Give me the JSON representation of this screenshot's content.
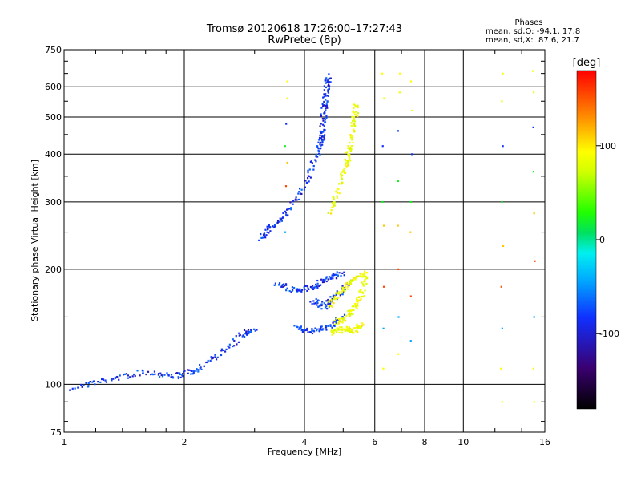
{
  "chart_data": {
    "type": "scatter",
    "title": "Tromsø 20120618 17:26:00–17:27:43",
    "subtitle": "RwPretec (8p)",
    "xlabel": "Frequency [MHz]",
    "ylabel": "Stationary phase Virtual Height [km]",
    "x_scale": "log",
    "y_scale": "log",
    "xlim": [
      1,
      16
    ],
    "ylim": [
      75,
      750
    ],
    "x_ticks": [
      1,
      2,
      4,
      6,
      8,
      10,
      16
    ],
    "x_tick_labels": [
      "1",
      "2",
      "4",
      "6",
      "8",
      "10",
      "16"
    ],
    "y_ticks": [
      75,
      100,
      200,
      300,
      400,
      500,
      600,
      750
    ],
    "y_tick_labels": [
      "75",
      "100",
      "200",
      "300",
      "400",
      "500",
      "600",
      "750"
    ],
    "x_minor_ticks": [
      1.2,
      1.4,
      1.6,
      1.8,
      3,
      5,
      7,
      9,
      12,
      14
    ],
    "y_minor_ticks": [
      80,
      90,
      150,
      250,
      350,
      450,
      550,
      650,
      700
    ],
    "grid": true,
    "phases_panel": {
      "title": "Phases",
      "line1": "mean, sd,O: -94.1, 17.8",
      "line2": "mean, sd,X:  87.6, 21.7"
    },
    "colorbar": {
      "label": "[deg]",
      "range": [
        -180,
        180
      ],
      "ticks": [
        100,
        0,
        -100
      ],
      "tick_labels": [
        "100",
        "0",
        "-100"
      ]
    },
    "series": [
      {
        "name": "O",
        "color_phase": -100,
        "traces": [
          {
            "x": [
              1.05,
              1.3,
              1.6,
              1.9,
              2.1,
              2.4,
              2.8,
              3.0
            ],
            "y": [
              98,
              103,
              108,
              105,
              108,
              118,
              135,
              140
            ]
          },
          {
            "x": [
              3.1,
              3.3,
              3.6,
              4.0,
              4.3,
              4.5
            ],
            "y": [
              240,
              258,
              280,
              330,
              400,
              460
            ]
          },
          {
            "x": [
              4.4,
              4.45,
              4.5,
              4.55,
              4.6
            ],
            "y": [
              420,
              480,
              540,
              600,
              640
            ]
          },
          {
            "x": [
              3.4,
              3.8,
              4.2,
              4.6,
              5.0
            ],
            "y": [
              185,
              175,
              180,
              190,
              195
            ]
          },
          {
            "x": [
              4.2,
              4.5,
              4.8,
              5.2
            ],
            "y": [
              165,
              160,
              170,
              185
            ]
          },
          {
            "x": [
              3.8,
              4.2,
              4.6,
              5.0
            ],
            "y": [
              140,
              138,
              142,
              150
            ]
          }
        ]
      },
      {
        "name": "X",
        "color_phase": 90,
        "traces": [
          {
            "x": [
              4.6,
              4.9,
              5.1,
              5.2,
              5.3,
              5.4
            ],
            "y": [
              280,
              330,
              380,
              420,
              480,
              540
            ]
          },
          {
            "x": [
              4.8,
              5.1,
              5.4,
              5.6,
              5.7
            ],
            "y": [
              145,
              150,
              160,
              175,
              200
            ]
          },
          {
            "x": [
              4.6,
              4.9,
              5.2,
              5.6
            ],
            "y": [
              160,
              175,
              185,
              195
            ]
          },
          {
            "x": [
              4.7,
              5.0,
              5.3,
              5.6
            ],
            "y": [
              136,
              140,
              138,
              143
            ]
          }
        ]
      }
    ],
    "scattered_columns": [
      {
        "x": 3.6,
        "y": [
          620,
          560,
          480,
          420,
          380,
          330,
          250
        ]
      },
      {
        "x": 6.3,
        "y": [
          650,
          560,
          420,
          300,
          260,
          180,
          140,
          110
        ]
      },
      {
        "x": 6.9,
        "y": [
          650,
          580,
          460,
          340,
          260,
          200,
          150,
          120
        ]
      },
      {
        "x": 7.4,
        "y": [
          620,
          520,
          400,
          300,
          250,
          170,
          130
        ]
      },
      {
        "x": 12.5,
        "y": [
          650,
          550,
          420,
          300,
          230,
          180,
          140,
          110,
          90
        ]
      },
      {
        "x": 15.0,
        "y": [
          660,
          580,
          470,
          360,
          280,
          210,
          150,
          110,
          90
        ]
      }
    ]
  }
}
